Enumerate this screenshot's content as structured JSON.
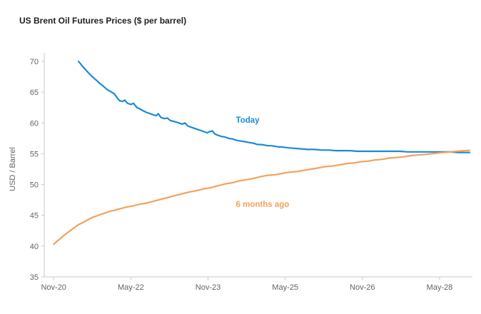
{
  "title": "US Brent Oil Futures Prices ($ per barrel)",
  "chart_data": {
    "type": "line",
    "title": "US Brent Oil Futures Prices ($ per barrel)",
    "xlabel": "",
    "ylabel": "USD / Barrel",
    "x_unit": "months since Nov-20",
    "xlim": [
      -2.2,
      97.5
    ],
    "ylim": [
      35,
      70
    ],
    "grid": false,
    "legend": "inline-annotations",
    "y_ticks": [
      35,
      40,
      45,
      50,
      55,
      60,
      65,
      70
    ],
    "x_ticks": [
      {
        "x": 0,
        "label": "Nov-20"
      },
      {
        "x": 18,
        "label": "May-22"
      },
      {
        "x": 36,
        "label": "Nov-23"
      },
      {
        "x": 54,
        "label": "May-25"
      },
      {
        "x": 72,
        "label": "Nov-26"
      },
      {
        "x": 90,
        "label": "May-28"
      }
    ],
    "series": [
      {
        "name": "Today",
        "color": "#1b8bd3",
        "points": [
          [
            5.8,
            70.0
          ],
          [
            6.6,
            69.3
          ],
          [
            7.5,
            68.6
          ],
          [
            8.3,
            68.0
          ],
          [
            9.2,
            67.4
          ],
          [
            10,
            66.9
          ],
          [
            10.8,
            66.4
          ],
          [
            11.7,
            65.9
          ],
          [
            12.5,
            65.4
          ],
          [
            13.3,
            65.1
          ],
          [
            14.2,
            64.7
          ],
          [
            15,
            63.9
          ],
          [
            15.4,
            63.6
          ],
          [
            16,
            63.5
          ],
          [
            16.6,
            63.7
          ],
          [
            17.2,
            63.2
          ],
          [
            18,
            63.0
          ],
          [
            18.6,
            63.2
          ],
          [
            19.4,
            62.5
          ],
          [
            20,
            62.3
          ],
          [
            20.8,
            62.0
          ],
          [
            21.7,
            61.7
          ],
          [
            22.5,
            61.5
          ],
          [
            23.3,
            61.3
          ],
          [
            24,
            61.2
          ],
          [
            24.4,
            61.5
          ],
          [
            25,
            60.9
          ],
          [
            25.8,
            60.7
          ],
          [
            26.5,
            60.8
          ],
          [
            27.2,
            60.4
          ],
          [
            28.3,
            60.2
          ],
          [
            29.2,
            60.0
          ],
          [
            30,
            59.8
          ],
          [
            30.6,
            60.0
          ],
          [
            31.3,
            59.5
          ],
          [
            32.5,
            59.2
          ],
          [
            33.3,
            59.0
          ],
          [
            34.2,
            58.8
          ],
          [
            35,
            58.6
          ],
          [
            35.8,
            58.4
          ],
          [
            36.4,
            58.6
          ],
          [
            37,
            58.7
          ],
          [
            37.6,
            58.2
          ],
          [
            38.3,
            58.0
          ],
          [
            39.2,
            57.8
          ],
          [
            40,
            57.7
          ],
          [
            40.8,
            57.5
          ],
          [
            41.7,
            57.4
          ],
          [
            42.5,
            57.2
          ],
          [
            43.3,
            57.1
          ],
          [
            44.2,
            57.0
          ],
          [
            45,
            56.9
          ],
          [
            45.8,
            56.8
          ],
          [
            46.7,
            56.7
          ],
          [
            47.5,
            56.5
          ],
          [
            48.3,
            56.5
          ],
          [
            49.2,
            56.4
          ],
          [
            50,
            56.3
          ],
          [
            50.8,
            56.3
          ],
          [
            51.7,
            56.2
          ],
          [
            52.5,
            56.1
          ],
          [
            53.3,
            56.1
          ],
          [
            54.2,
            56.0
          ],
          [
            55.8,
            55.9
          ],
          [
            57.5,
            55.8
          ],
          [
            59.2,
            55.7
          ],
          [
            60.8,
            55.7
          ],
          [
            62.5,
            55.6
          ],
          [
            64.2,
            55.6
          ],
          [
            65.8,
            55.5
          ],
          [
            67.5,
            55.5
          ],
          [
            69.2,
            55.5
          ],
          [
            70.8,
            55.4
          ],
          [
            72.5,
            55.4
          ],
          [
            74.2,
            55.4
          ],
          [
            75.8,
            55.4
          ],
          [
            77.5,
            55.4
          ],
          [
            79.2,
            55.4
          ],
          [
            80.8,
            55.4
          ],
          [
            82.5,
            55.3
          ],
          [
            84.2,
            55.3
          ],
          [
            85.8,
            55.3
          ],
          [
            87.5,
            55.3
          ],
          [
            89.2,
            55.3
          ],
          [
            90.8,
            55.3
          ],
          [
            92.5,
            55.3
          ],
          [
            94.2,
            55.2
          ],
          [
            96,
            55.2
          ],
          [
            97,
            55.2
          ]
        ]
      },
      {
        "name": "6 months ago",
        "color": "#f2a25c",
        "points": [
          [
            0,
            40.3
          ],
          [
            0.8,
            40.8
          ],
          [
            1.7,
            41.3
          ],
          [
            2.5,
            41.8
          ],
          [
            3.3,
            42.2
          ],
          [
            4.2,
            42.7
          ],
          [
            5,
            43.1
          ],
          [
            5.8,
            43.5
          ],
          [
            6.7,
            43.8
          ],
          [
            7.5,
            44.1
          ],
          [
            8.3,
            44.4
          ],
          [
            9.2,
            44.7
          ],
          [
            10,
            44.9
          ],
          [
            10.8,
            45.1
          ],
          [
            11.7,
            45.3
          ],
          [
            12.5,
            45.5
          ],
          [
            13.3,
            45.7
          ],
          [
            14.2,
            45.8
          ],
          [
            15,
            46.0
          ],
          [
            15.8,
            46.1
          ],
          [
            16.7,
            46.3
          ],
          [
            17.5,
            46.4
          ],
          [
            18.3,
            46.5
          ],
          [
            20,
            46.8
          ],
          [
            21.7,
            47.0
          ],
          [
            23.3,
            47.3
          ],
          [
            25,
            47.6
          ],
          [
            26.7,
            47.9
          ],
          [
            28.3,
            48.2
          ],
          [
            30,
            48.5
          ],
          [
            31.7,
            48.8
          ],
          [
            33.3,
            49.0
          ],
          [
            35,
            49.3
          ],
          [
            36.7,
            49.5
          ],
          [
            38.3,
            49.8
          ],
          [
            40,
            50.1
          ],
          [
            41.7,
            50.3
          ],
          [
            43.3,
            50.6
          ],
          [
            45,
            50.8
          ],
          [
            46.7,
            51.0
          ],
          [
            48.3,
            51.3
          ],
          [
            50,
            51.5
          ],
          [
            51.7,
            51.6
          ],
          [
            53.3,
            51.8
          ],
          [
            55,
            52.0
          ],
          [
            56.7,
            52.1
          ],
          [
            58.3,
            52.3
          ],
          [
            60,
            52.5
          ],
          [
            61.7,
            52.7
          ],
          [
            63.3,
            52.9
          ],
          [
            65,
            53.0
          ],
          [
            66.7,
            53.2
          ],
          [
            68.3,
            53.4
          ],
          [
            70,
            53.5
          ],
          [
            71.7,
            53.7
          ],
          [
            73.3,
            53.8
          ],
          [
            75,
            54.0
          ],
          [
            76.7,
            54.1
          ],
          [
            78.3,
            54.3
          ],
          [
            80,
            54.4
          ],
          [
            81.7,
            54.5
          ],
          [
            83.3,
            54.7
          ],
          [
            85,
            54.8
          ],
          [
            86.7,
            54.9
          ],
          [
            88.3,
            55.0
          ],
          [
            90,
            55.15
          ],
          [
            91.7,
            55.25
          ],
          [
            93.3,
            55.35
          ],
          [
            95,
            55.45
          ],
          [
            97,
            55.55
          ]
        ]
      }
    ],
    "annotations": [
      {
        "text": "Today",
        "x": 42.5,
        "y": 60.5,
        "color": "#1b8bd3"
      },
      {
        "text": "6 months ago",
        "x": 42.5,
        "y": 46.8,
        "color": "#f2a25c"
      }
    ]
  },
  "colors": {
    "today_line": "#1b8bd3",
    "six_months_ago_line": "#f2a25c",
    "axis": "#c9c9c9",
    "tick_label": "#5f6368",
    "title": "#1f1f1f"
  }
}
